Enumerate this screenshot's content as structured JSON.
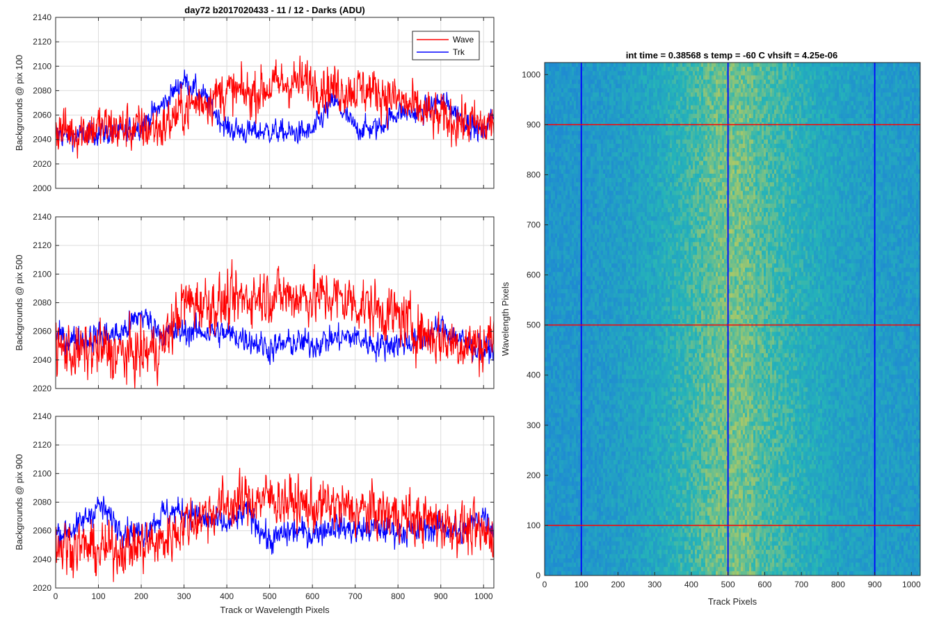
{
  "figure": {
    "suptitle": "day72 b2017020433 - 11 / 12 - Darks (ADU)",
    "colors": {
      "wave": "#ff0000",
      "trk": "#0000ff",
      "grid": "#dcdcdc",
      "axis": "#262626"
    }
  },
  "chart_data": [
    {
      "type": "line",
      "ylabel": "Backgrounds @ pix 100",
      "xlabel": "",
      "xlim": [
        0,
        1024
      ],
      "ylim": [
        2000,
        2140
      ],
      "xticks": [
        0,
        100,
        200,
        300,
        400,
        500,
        600,
        700,
        800,
        900,
        1000
      ],
      "yticks": [
        2000,
        2020,
        2040,
        2060,
        2080,
        2100,
        2120,
        2140
      ],
      "grid": true,
      "legend": {
        "placement": "top-right",
        "entries": [
          "Wave",
          "Trk"
        ]
      },
      "series": [
        {
          "name": "Wave",
          "color": "#ff0000",
          "x": [
            0,
            50,
            100,
            150,
            200,
            250,
            300,
            350,
            400,
            450,
            500,
            550,
            600,
            650,
            700,
            750,
            800,
            850,
            900,
            950,
            1000,
            1024
          ],
          "values": [
            2048,
            2047,
            2050,
            2049,
            2049,
            2050,
            2065,
            2073,
            2079,
            2077,
            2083,
            2087,
            2086,
            2082,
            2081,
            2080,
            2072,
            2063,
            2057,
            2055,
            2050,
            2054
          ],
          "noise": 14
        },
        {
          "name": "Trk",
          "color": "#0000ff",
          "x": [
            0,
            50,
            100,
            150,
            200,
            250,
            300,
            350,
            400,
            450,
            500,
            550,
            600,
            650,
            700,
            750,
            800,
            850,
            900,
            950,
            1000,
            1024
          ],
          "values": [
            2044,
            2043,
            2046,
            2044,
            2052,
            2068,
            2089,
            2074,
            2049,
            2046,
            2047,
            2045,
            2046,
            2072,
            2049,
            2049,
            2063,
            2061,
            2072,
            2058,
            2044,
            2064
          ],
          "noise": 7
        }
      ]
    },
    {
      "type": "line",
      "ylabel": "Backgrounds @ pix 500",
      "xlabel": "",
      "xlim": [
        0,
        1024
      ],
      "ylim": [
        2020,
        2140
      ],
      "xticks": [
        0,
        100,
        200,
        300,
        400,
        500,
        600,
        700,
        800,
        900,
        1000
      ],
      "yticks": [
        2020,
        2040,
        2060,
        2080,
        2100,
        2120,
        2140
      ],
      "grid": true,
      "series": [
        {
          "name": "Wave",
          "color": "#ff0000",
          "x": [
            0,
            50,
            100,
            150,
            200,
            250,
            300,
            350,
            400,
            450,
            500,
            550,
            600,
            650,
            700,
            750,
            800,
            850,
            900,
            950,
            1000,
            1024
          ],
          "values": [
            2048,
            2045,
            2047,
            2044,
            2044,
            2050,
            2080,
            2080,
            2079,
            2084,
            2086,
            2085,
            2084,
            2084,
            2080,
            2075,
            2070,
            2060,
            2055,
            2052,
            2050,
            2058
          ],
          "noise": 14
        },
        {
          "name": "Trk",
          "color": "#0000ff",
          "x": [
            0,
            50,
            100,
            150,
            200,
            250,
            300,
            350,
            400,
            450,
            500,
            550,
            600,
            650,
            700,
            750,
            800,
            850,
            900,
            950,
            1000,
            1024
          ],
          "values": [
            2056,
            2054,
            2057,
            2058,
            2072,
            2058,
            2060,
            2060,
            2058,
            2055,
            2048,
            2052,
            2051,
            2055,
            2056,
            2050,
            2052,
            2053,
            2063,
            2053,
            2046,
            2048
          ],
          "noise": 7
        }
      ]
    },
    {
      "type": "line",
      "ylabel": "Backgrounds @ pix 900",
      "xlabel": "Track or Wavelength Pixels",
      "xlim": [
        0,
        1024
      ],
      "ylim": [
        2020,
        2140
      ],
      "xticks": [
        0,
        100,
        200,
        300,
        400,
        500,
        600,
        700,
        800,
        900,
        1000
      ],
      "yticks": [
        2020,
        2040,
        2060,
        2080,
        2100,
        2120,
        2140
      ],
      "grid": true,
      "series": [
        {
          "name": "Wave",
          "color": "#ff0000",
          "x": [
            0,
            50,
            100,
            150,
            200,
            250,
            300,
            350,
            400,
            450,
            500,
            550,
            600,
            650,
            700,
            750,
            800,
            850,
            900,
            950,
            1000,
            1024
          ],
          "values": [
            2050,
            2050,
            2046,
            2048,
            2050,
            2052,
            2065,
            2072,
            2078,
            2081,
            2083,
            2080,
            2076,
            2078,
            2074,
            2073,
            2071,
            2068,
            2066,
            2062,
            2057,
            2058
          ],
          "noise": 13
        },
        {
          "name": "Trk",
          "color": "#0000ff",
          "x": [
            0,
            50,
            100,
            150,
            200,
            250,
            300,
            350,
            400,
            450,
            500,
            550,
            600,
            650,
            700,
            750,
            800,
            850,
            900,
            950,
            1000,
            1024
          ],
          "values": [
            2058,
            2062,
            2078,
            2062,
            2058,
            2072,
            2074,
            2067,
            2064,
            2074,
            2052,
            2060,
            2058,
            2064,
            2060,
            2062,
            2060,
            2059,
            2064,
            2058,
            2072,
            2062
          ],
          "noise": 7
        }
      ]
    },
    {
      "type": "heatmap",
      "title": "int time = 0.38568 s    temp = -60 C    vhsift = 4.25e-06",
      "xlabel": "Track Pixels",
      "ylabel": "Wavelength Pixels",
      "xlim": [
        0,
        1024
      ],
      "ylim": [
        0,
        1024
      ],
      "xticks": [
        0,
        100,
        200,
        300,
        400,
        500,
        600,
        700,
        800,
        900,
        1000
      ],
      "yticks": [
        0,
        100,
        200,
        300,
        400,
        500,
        600,
        700,
        800,
        900,
        1000
      ],
      "colormap": {
        "low": "#1f8bd1",
        "mid": "#25b4b8",
        "high": "#c8cd55"
      },
      "column_profile": {
        "x": [
          0,
          100,
          200,
          300,
          400,
          450,
          500,
          550,
          600,
          650,
          700,
          800,
          900,
          1024
        ],
        "level": [
          0.12,
          0.15,
          0.22,
          0.35,
          0.55,
          0.68,
          0.75,
          0.72,
          0.62,
          0.55,
          0.45,
          0.3,
          0.22,
          0.18
        ]
      },
      "overlay_lines": {
        "vertical_at": [
          100,
          500,
          900
        ],
        "vertical_color": "#0000ff",
        "horizontal_at": [
          100,
          500,
          900
        ],
        "horizontal_color": "#ff0000"
      }
    }
  ]
}
